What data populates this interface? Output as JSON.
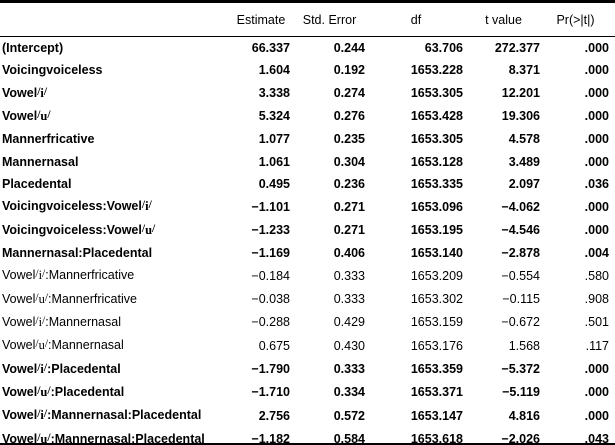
{
  "colors": {
    "background": "#ffffff",
    "text": "#000000",
    "rule": "#000000"
  },
  "table": {
    "col_headers": {
      "label": "",
      "estimate": "Estimate",
      "std_error": "Std. Error",
      "df": "df",
      "t_value": "t value",
      "p_value": "Pr(>|t|)"
    },
    "rows": [
      {
        "label": "(Intercept)",
        "estimate": "66.337",
        "std_error": "0.244",
        "df": "63.706",
        "t_value": "272.377",
        "p_value": ".000",
        "bold": true
      },
      {
        "label": "Voicingvoiceless",
        "estimate": "1.604",
        "std_error": "0.192",
        "df": "1653.228",
        "t_value": "8.371",
        "p_value": ".000",
        "bold": true
      },
      {
        "label": "Vowel/i/",
        "estimate": "3.338",
        "std_error": "0.274",
        "df": "1653.305",
        "t_value": "12.201",
        "p_value": ".000",
        "bold": true
      },
      {
        "label": "Vowel/u/",
        "estimate": "5.324",
        "std_error": "0.276",
        "df": "1653.428",
        "t_value": "19.306",
        "p_value": ".000",
        "bold": true
      },
      {
        "label": "Mannerfricative",
        "estimate": "1.077",
        "std_error": "0.235",
        "df": "1653.305",
        "t_value": "4.578",
        "p_value": ".000",
        "bold": true
      },
      {
        "label": "Mannernasal",
        "estimate": "1.061",
        "std_error": "0.304",
        "df": "1653.128",
        "t_value": "3.489",
        "p_value": ".000",
        "bold": true
      },
      {
        "label": "Placedental",
        "estimate": "0.495",
        "std_error": "0.236",
        "df": "1653.335",
        "t_value": "2.097",
        "p_value": ".036",
        "bold": true
      },
      {
        "label": "Voicingvoiceless:Vowel/i/",
        "estimate": "−1.101",
        "std_error": "0.271",
        "df": "1653.096",
        "t_value": "−4.062",
        "p_value": ".000",
        "bold": true
      },
      {
        "label": "Voicingvoiceless:Vowel/u/",
        "estimate": "−1.233",
        "std_error": "0.271",
        "df": "1653.195",
        "t_value": "−4.546",
        "p_value": ".000",
        "bold": true
      },
      {
        "label": "Mannernasal:Placedental",
        "estimate": "−1.169",
        "std_error": "0.406",
        "df": "1653.140",
        "t_value": "−2.878",
        "p_value": ".004",
        "bold": true
      },
      {
        "label": "Vowel/i/:Mannerfricative",
        "estimate": "−0.184",
        "std_error": "0.333",
        "df": "1653.209",
        "t_value": "−0.554",
        "p_value": ".580",
        "bold": false
      },
      {
        "label": "Vowel/u/:Mannerfricative",
        "estimate": "−0.038",
        "std_error": "0.333",
        "df": "1653.302",
        "t_value": "−0.115",
        "p_value": ".908",
        "bold": false
      },
      {
        "label": "Vowel/i/:Mannernasal",
        "estimate": "−0.288",
        "std_error": "0.429",
        "df": "1653.159",
        "t_value": "−0.672",
        "p_value": ".501",
        "bold": false
      },
      {
        "label": "Vowel/u/:Mannernasal",
        "estimate": "0.675",
        "std_error": "0.430",
        "df": "1653.176",
        "t_value": "1.568",
        "p_value": ".117",
        "bold": false
      },
      {
        "label": "Vowel/i/:Placedental",
        "estimate": "−1.790",
        "std_error": "0.333",
        "df": "1653.359",
        "t_value": "−5.372",
        "p_value": ".000",
        "bold": true
      },
      {
        "label": "Vowel/u/:Placedental",
        "estimate": "−1.710",
        "std_error": "0.334",
        "df": "1653.371",
        "t_value": "−5.119",
        "p_value": ".000",
        "bold": true
      },
      {
        "label": "Vowel/i/:Mannernasal:Placedental",
        "estimate": "2.756",
        "std_error": "0.572",
        "df": "1653.147",
        "t_value": "4.816",
        "p_value": ".000",
        "bold": true
      },
      {
        "label": "Vowel/u/:Mannernasal:Placedental",
        "estimate": "−1.182",
        "std_error": "0.584",
        "df": "1653.618",
        "t_value": "−2.026",
        "p_value": ".043",
        "bold": true
      }
    ]
  }
}
